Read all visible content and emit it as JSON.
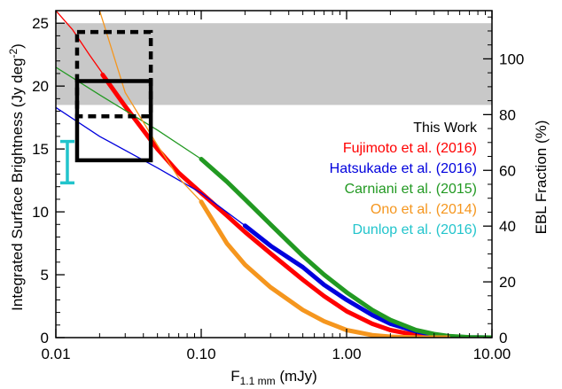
{
  "chart_data": {
    "type": "line",
    "x_scale": "log",
    "xlim": [
      0.01,
      10.0
    ],
    "ylim": [
      0,
      26
    ],
    "y2lim": [
      0,
      117.3
    ],
    "xlabel_main": "F",
    "xlabel_sub": "1.1 mm",
    "xlabel_unit": " (mJy)",
    "ylabel": "Integrated Surface Brightness (Jy deg",
    "ylabel_sup": "-2",
    "ylabel_end": ")",
    "y2label": "EBL Fraction (%)",
    "x_ticks": [
      {
        "value": 0.01,
        "label": "0.01"
      },
      {
        "value": 0.1,
        "label": "0.10"
      },
      {
        "value": 1.0,
        "label": "1.00"
      },
      {
        "value": 10.0,
        "label": "10.00"
      }
    ],
    "y_ticks": [
      0,
      5,
      10,
      15,
      20,
      25
    ],
    "y2_ticks": [
      0,
      20,
      40,
      60,
      80,
      100
    ],
    "ebl_band": {
      "ymin": 18.5,
      "ymax": 25.0,
      "color": "#c8c8c8"
    },
    "legend_position": "right",
    "series": [
      {
        "name": "Fujimoto et al. (2016)",
        "color": "#ff0000",
        "thin": {
          "x": [
            0.01,
            0.013,
            0.017,
            0.021
          ],
          "y": [
            26.0,
            24.5,
            22.5,
            21.0
          ]
        },
        "thick": {
          "x": [
            0.021,
            0.03,
            0.05,
            0.07,
            0.1,
            0.15,
            0.2,
            0.3,
            0.5,
            0.7,
            1.0,
            1.5,
            2.0,
            3.0,
            4.0,
            5.0,
            7.0,
            10.0
          ],
          "y": [
            20.9,
            18.4,
            15.0,
            13.1,
            11.5,
            9.7,
            8.4,
            6.7,
            4.6,
            3.3,
            2.1,
            1.1,
            0.6,
            0.2,
            0.07,
            0.03,
            0.0,
            0.0
          ]
        }
      },
      {
        "name": "Hatsukade et al. (2016)",
        "color": "#0000dd",
        "thin": {
          "x": [
            0.01,
            0.02,
            0.05,
            0.1,
            0.2
          ],
          "y": [
            18.3,
            16.0,
            13.5,
            11.5,
            8.9
          ]
        },
        "thick": {
          "x": [
            0.2,
            0.3,
            0.5,
            0.7,
            1.0,
            1.5,
            2.0,
            3.0,
            4.0,
            5.0,
            7.0,
            10.0
          ],
          "y": [
            8.9,
            7.3,
            5.6,
            4.2,
            3.0,
            1.8,
            1.1,
            0.5,
            0.22,
            0.1,
            0.02,
            0.0
          ]
        }
      },
      {
        "name": "Carniani et al. (2015)",
        "color": "#229922",
        "thin": {
          "x": [
            0.01,
            0.02,
            0.05,
            0.1
          ],
          "y": [
            21.5,
            19.3,
            16.5,
            14.2
          ]
        },
        "thick": {
          "x": [
            0.1,
            0.15,
            0.2,
            0.3,
            0.5,
            0.7,
            1.0,
            1.5,
            2.0,
            3.0,
            4.0,
            5.0,
            7.0,
            10.0
          ],
          "y": [
            14.2,
            12.4,
            11.0,
            9.0,
            6.5,
            5.0,
            3.6,
            2.2,
            1.4,
            0.6,
            0.28,
            0.13,
            0.03,
            0.0
          ]
        }
      },
      {
        "name": "Ono et al. (2014)",
        "color": "#f5961e",
        "thin": {
          "x": [
            0.02,
            0.03,
            0.05,
            0.07,
            0.1
          ],
          "y": [
            26.0,
            19.5,
            15.3,
            12.7,
            10.8
          ]
        },
        "thick": {
          "x": [
            0.1,
            0.15,
            0.2,
            0.3,
            0.5,
            0.7,
            1.0,
            1.5,
            2.0,
            3.0,
            4.0,
            5.0
          ],
          "y": [
            10.8,
            7.5,
            5.8,
            4.0,
            2.2,
            1.3,
            0.6,
            0.2,
            0.07,
            0.01,
            0.0,
            0.0
          ]
        }
      }
    ],
    "this_work": {
      "name": "This Work",
      "solid_box": {
        "xmin": 0.014,
        "xmax": 0.045,
        "ymin": 14.1,
        "ymax": 20.4
      },
      "dashed_box": {
        "xmin": 0.014,
        "xmax": 0.045,
        "ymin": 17.6,
        "ymax": 24.3
      },
      "color": "#000000"
    },
    "dunlop": {
      "name": "Dunlop et al. (2016)",
      "x": 0.012,
      "ylow": 12.3,
      "yhigh": 15.6,
      "color": "#22c4cc"
    },
    "legend": [
      {
        "label": "This Work",
        "color": "#000000"
      },
      {
        "label": "Fujimoto et al. (2016)",
        "color": "#ff0000"
      },
      {
        "label": "Hatsukade et al. (2016)",
        "color": "#0000dd"
      },
      {
        "label": "Carniani et al. (2015)",
        "color": "#229922"
      },
      {
        "label": "Ono et al. (2014)",
        "color": "#f5961e"
      },
      {
        "label": "Dunlop et al. (2016)",
        "color": "#22c4cc"
      }
    ]
  }
}
